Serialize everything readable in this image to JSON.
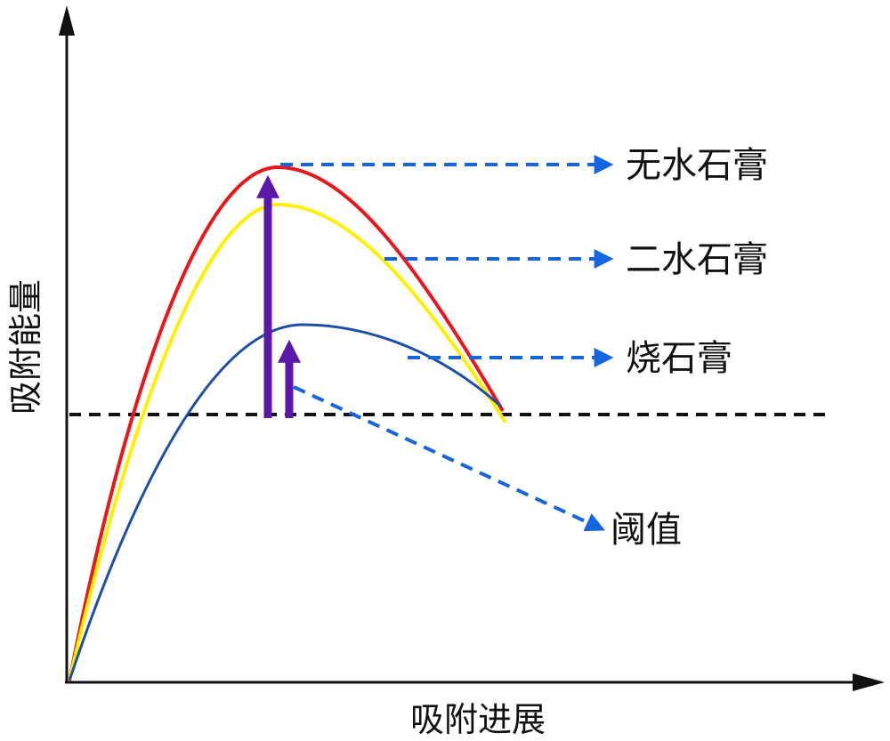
{
  "axes": {
    "x_label": "吸附进展",
    "y_label": "吸附能量"
  },
  "curves": [
    {
      "name": "无水石膏",
      "color": "#e8171c"
    },
    {
      "name": "二水石膏",
      "color": "#ffef00"
    },
    {
      "name": "烧石膏",
      "color": "#1c4fa8"
    }
  ],
  "threshold": {
    "label": "阈值",
    "color": "#111111"
  },
  "colors": {
    "annotation_arrow": "#1565e0",
    "energy_arrow": "#5a17a8",
    "axis": "#111111"
  }
}
